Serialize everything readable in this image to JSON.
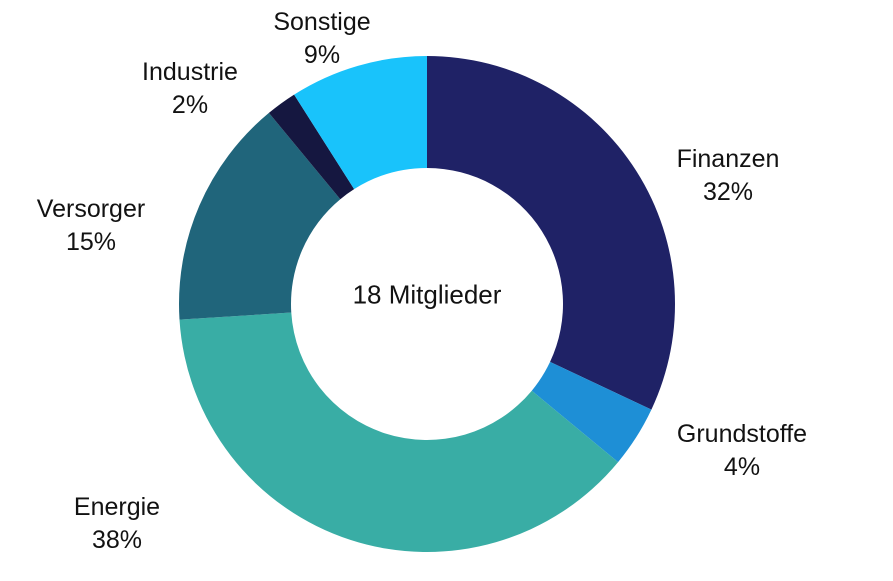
{
  "chart_data": {
    "type": "pie",
    "donut": true,
    "center_label": "18 Mitglieder",
    "start_angle_deg": 0,
    "direction": "clockwise",
    "legend_position": "outside-labels",
    "background_color": "#ffffff",
    "label_text_color": "#121212",
    "segments": [
      {
        "label": "Finanzen",
        "value": 32,
        "pct_label": "32%",
        "color": "#1f2266"
      },
      {
        "label": "Grundstoffe",
        "value": 4,
        "pct_label": "4%",
        "color": "#1e8fd6"
      },
      {
        "label": "Energie",
        "value": 38,
        "pct_label": "38%",
        "color": "#39ada5"
      },
      {
        "label": "Versorger",
        "value": 15,
        "pct_label": "15%",
        "color": "#20657b"
      },
      {
        "label": "Industrie",
        "value": 2,
        "pct_label": "2%",
        "color": "#151740"
      },
      {
        "label": "Sonstige",
        "value": 9,
        "pct_label": "9%",
        "color": "#19c3fb"
      }
    ]
  }
}
